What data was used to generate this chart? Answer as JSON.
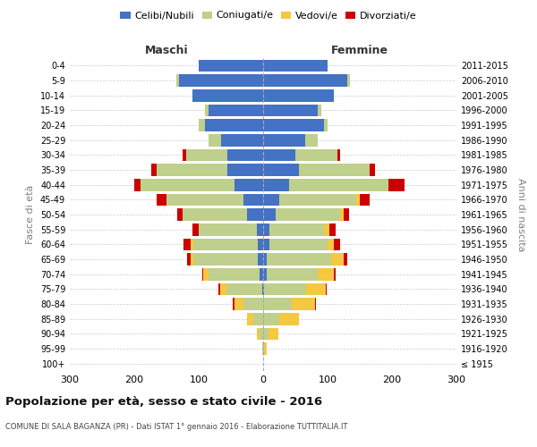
{
  "age_groups": [
    "100+",
    "95-99",
    "90-94",
    "85-89",
    "80-84",
    "75-79",
    "70-74",
    "65-69",
    "60-64",
    "55-59",
    "50-54",
    "45-49",
    "40-44",
    "35-39",
    "30-34",
    "25-29",
    "20-24",
    "15-19",
    "10-14",
    "5-9",
    "0-4"
  ],
  "birth_years": [
    "≤ 1915",
    "1916-1920",
    "1921-1925",
    "1926-1930",
    "1931-1935",
    "1936-1940",
    "1941-1945",
    "1946-1950",
    "1951-1955",
    "1956-1960",
    "1961-1965",
    "1966-1970",
    "1971-1975",
    "1976-1980",
    "1981-1985",
    "1986-1990",
    "1991-1995",
    "1996-2000",
    "2001-2005",
    "2006-2010",
    "2011-2015"
  ],
  "male_celibi": [
    0,
    0,
    0,
    0,
    0,
    2,
    5,
    8,
    8,
    10,
    25,
    30,
    45,
    55,
    55,
    65,
    90,
    85,
    110,
    130,
    100
  ],
  "male_coniugati": [
    0,
    1,
    5,
    15,
    30,
    55,
    80,
    100,
    100,
    90,
    100,
    120,
    145,
    110,
    65,
    20,
    10,
    5,
    0,
    5,
    0
  ],
  "male_vedovi": [
    0,
    1,
    5,
    10,
    15,
    10,
    8,
    5,
    5,
    0,
    0,
    0,
    0,
    0,
    0,
    0,
    0,
    0,
    0,
    0,
    0
  ],
  "male_divorziati": [
    0,
    0,
    0,
    0,
    2,
    2,
    2,
    5,
    10,
    10,
    8,
    15,
    10,
    8,
    5,
    0,
    0,
    0,
    0,
    0,
    0
  ],
  "female_nubili": [
    0,
    0,
    0,
    0,
    0,
    2,
    5,
    5,
    10,
    10,
    20,
    25,
    40,
    55,
    50,
    65,
    95,
    85,
    110,
    130,
    100
  ],
  "female_coniugate": [
    0,
    2,
    8,
    25,
    45,
    65,
    80,
    100,
    90,
    85,
    100,
    120,
    155,
    110,
    65,
    20,
    5,
    5,
    0,
    5,
    0
  ],
  "female_vedove": [
    0,
    3,
    15,
    30,
    35,
    30,
    25,
    20,
    10,
    8,
    5,
    5,
    0,
    0,
    0,
    0,
    0,
    0,
    0,
    0,
    0
  ],
  "female_divorziate": [
    0,
    0,
    0,
    0,
    2,
    2,
    2,
    5,
    10,
    10,
    8,
    15,
    25,
    8,
    5,
    0,
    0,
    0,
    0,
    0,
    0
  ],
  "colors": {
    "celibi": "#4472C4",
    "coniugati": "#BFCF8C",
    "vedovi": "#F5C842",
    "divorziati": "#CC0000"
  },
  "xlim": 300,
  "title": "Popolazione per età, sesso e stato civile - 2016",
  "subtitle": "COMUNE DI SALA BAGANZA (PR) - Dati ISTAT 1° gennaio 2016 - Elaborazione TUTTITALIA.IT",
  "ylabel": "Fasce di età",
  "ylabel_right": "Anni di nascita",
  "legend_labels": [
    "Celibi/Nubili",
    "Coniugati/e",
    "Vedovi/e",
    "Divorziati/e"
  ]
}
